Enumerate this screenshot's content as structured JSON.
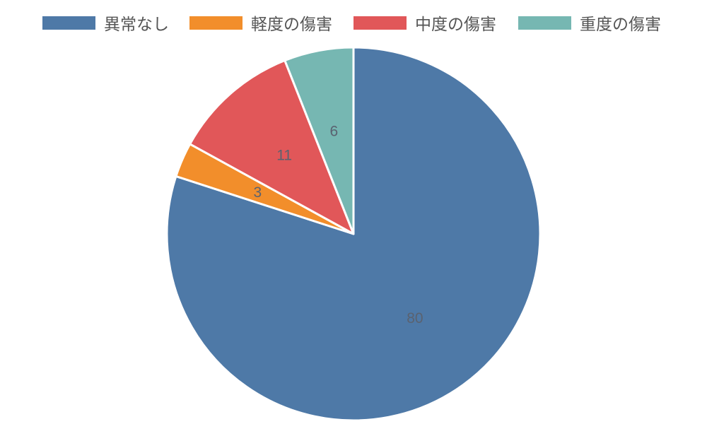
{
  "chart_data": {
    "type": "pie",
    "title": "",
    "legend_position": "top",
    "categories": [
      "異常なし",
      "軽度の傷害",
      "中度の傷害",
      "重度の傷害"
    ],
    "values": [
      80,
      3,
      11,
      6
    ],
    "colors": [
      "#4e79a7",
      "#f28e2b",
      "#e15759",
      "#76b7b2"
    ]
  },
  "legend": {
    "items": [
      {
        "label": "異常なし",
        "color": "#4e79a7"
      },
      {
        "label": "軽度の傷害",
        "color": "#f28e2b"
      },
      {
        "label": "中度の傷害",
        "color": "#e15759"
      },
      {
        "label": "重度の傷害",
        "color": "#76b7b2"
      }
    ]
  }
}
